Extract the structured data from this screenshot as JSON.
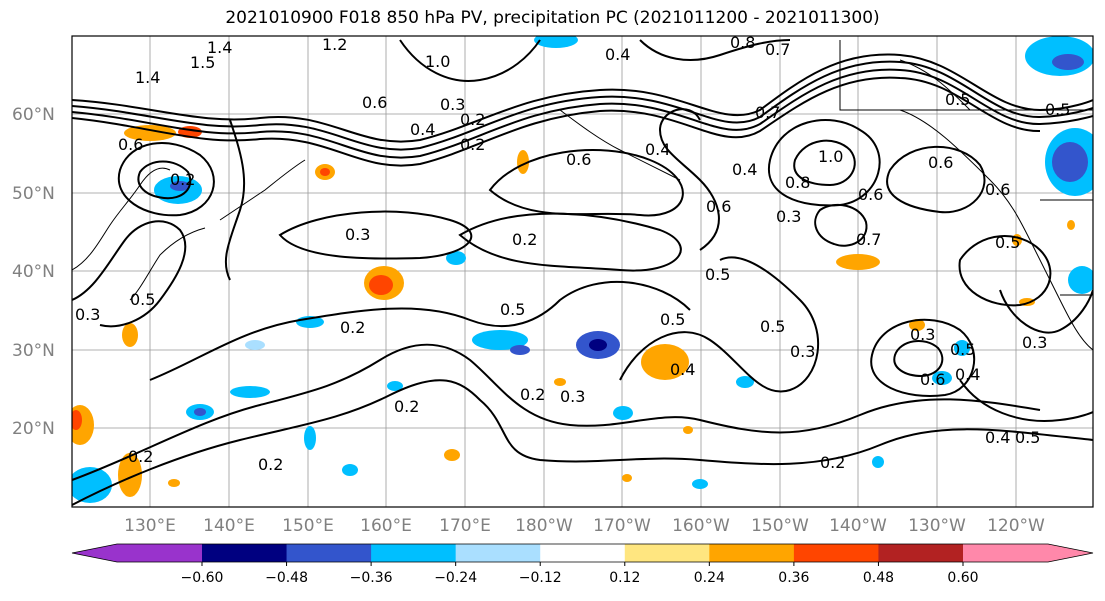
{
  "title": "2021010900 F018 850 hPa PV, precipitation PC (2021011200 - 2021011300)",
  "lat_labels": [
    "60°N",
    "50°N",
    "40°N",
    "30°N",
    "20°N"
  ],
  "lon_labels": [
    "130°E",
    "140°E",
    "150°E",
    "160°E",
    "170°E",
    "180°W",
    "170°W",
    "160°W",
    "150°W",
    "140°W",
    "130°W",
    "120°W"
  ],
  "colorbar": {
    "colors": [
      "#9933cc",
      "#000080",
      "#3355cc",
      "#00bfff",
      "#aadfff",
      "#ffffff",
      "#ffe680",
      "#ffa500",
      "#ff4500",
      "#b22222",
      "#ff88aa"
    ],
    "ticks": [
      "−0.60",
      "−0.48",
      "−0.36",
      "−0.24",
      "−0.12",
      "0.12",
      "0.24",
      "0.36",
      "0.48",
      "0.60"
    ]
  },
  "contour_labels": [
    "1.4",
    "1.5",
    "1.4",
    "1.2",
    "1.0",
    "0.8",
    "0.7",
    "0.6",
    "0.4",
    "0.3",
    "0.2",
    "0.6",
    "0.4",
    "0.2",
    "0.5",
    "0.5",
    "0.5",
    "0.6",
    "0.4",
    "0.3",
    "0.7",
    "1.0",
    "0.8",
    "0.6",
    "0.7",
    "0.5",
    "0.6",
    "0.6",
    "0.5",
    "0.3",
    "0.5",
    "0.4",
    "0.3",
    "0.4",
    "0.5",
    "0.2",
    "0.2",
    "0.2",
    "0.3",
    "0.2",
    "0.2",
    "0.5",
    "0.6",
    "0.2",
    "0.3",
    "0.4",
    "0.2",
    "0.4",
    "0.5",
    "0.3",
    "0.5",
    "0.3",
    "0.6",
    "0.2"
  ]
}
